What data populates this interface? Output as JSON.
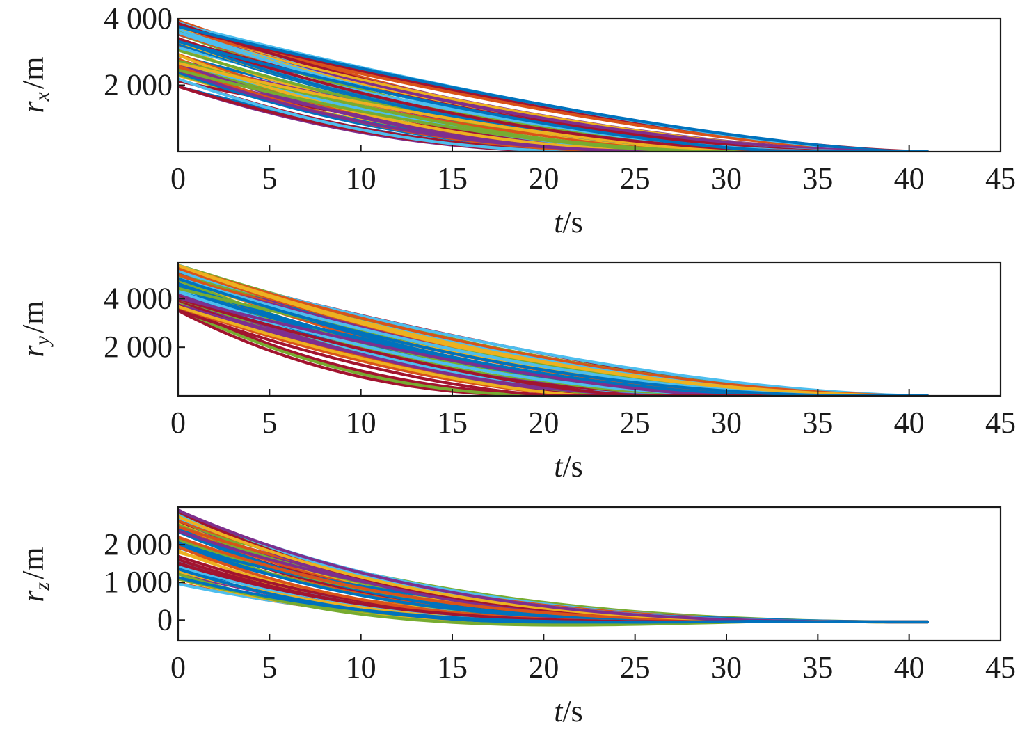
{
  "palette": [
    "#0072BD",
    "#D95319",
    "#EDB120",
    "#7E2F8E",
    "#77AC30",
    "#4DBEEE",
    "#A2142F"
  ],
  "chart_data": [
    {
      "type": "line",
      "ylabel_var": "r",
      "ylabel_sub": "x",
      "ylabel_unit": "/m",
      "xlabel_var": "t",
      "xlabel_unit": "/s",
      "xlim": [
        0,
        45
      ],
      "ylim": [
        0,
        4000
      ],
      "xticks": [
        0,
        5,
        10,
        15,
        20,
        25,
        30,
        35,
        40,
        45
      ],
      "xtick_labels": [
        "0",
        "5",
        "10",
        "15",
        "20",
        "25",
        "30",
        "35",
        "40",
        "45"
      ],
      "yticks": [
        2000,
        4000
      ],
      "ytick_labels": [
        "2 000",
        "4 000"
      ],
      "envelope": {
        "y0_range": [
          1950,
          3950
        ],
        "tf_range": [
          20,
          41
        ],
        "y_final": 0
      },
      "series_count": 64
    },
    {
      "type": "line",
      "ylabel_var": "r",
      "ylabel_sub": "y",
      "ylabel_unit": "/m",
      "xlabel_var": "t",
      "xlabel_unit": "/s",
      "xlim": [
        0,
        45
      ],
      "ylim": [
        0,
        5500
      ],
      "xticks": [
        0,
        5,
        10,
        15,
        20,
        25,
        30,
        35,
        40,
        45
      ],
      "xtick_labels": [
        "0",
        "5",
        "10",
        "15",
        "20",
        "25",
        "30",
        "35",
        "40",
        "45"
      ],
      "yticks": [
        2000,
        4000
      ],
      "ytick_labels": [
        "2 000",
        "4 000"
      ],
      "envelope": {
        "y0_range": [
          3500,
          5400
        ],
        "tf_range": [
          20,
          41
        ],
        "y_final": 0
      },
      "series_count": 64
    },
    {
      "type": "line",
      "ylabel_var": "r",
      "ylabel_sub": "z",
      "ylabel_unit": "/m",
      "xlabel_var": "t",
      "xlabel_unit": "/s",
      "xlim": [
        0,
        45
      ],
      "ylim": [
        -550,
        3000
      ],
      "xticks": [
        0,
        5,
        10,
        15,
        20,
        25,
        30,
        35,
        40,
        45
      ],
      "xtick_labels": [
        "0",
        "5",
        "10",
        "15",
        "20",
        "25",
        "30",
        "35",
        "40",
        "45"
      ],
      "yticks": [
        0,
        1000,
        2000
      ],
      "ytick_labels": [
        "0",
        "1 000",
        "2 000"
      ],
      "envelope": {
        "y0_range": [
          950,
          2950
        ],
        "tf_range": [
          35,
          41
        ],
        "y_final": -50,
        "undershoot_min": -500
      },
      "series_count": 64
    }
  ]
}
